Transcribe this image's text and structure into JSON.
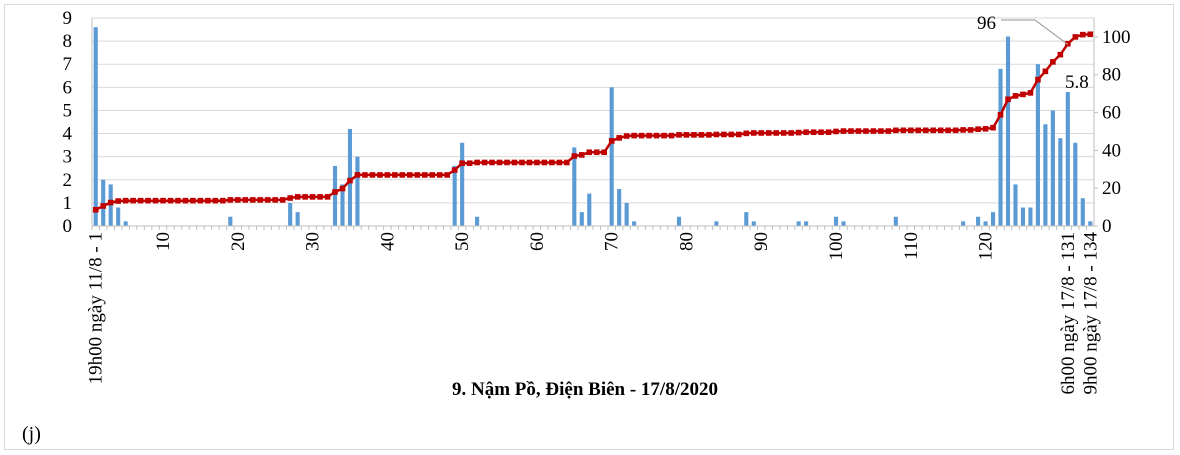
{
  "chart_data": {
    "type": "bar",
    "title": "9. Nậm Pồ, Điện Biên - 17/8/2020",
    "panel_label": "(j)",
    "x": {
      "range": [
        1,
        134
      ],
      "ticks": [
        10,
        20,
        30,
        40,
        50,
        60,
        70,
        80,
        90,
        100,
        110,
        120
      ],
      "first_label": "19h00 ngày 11/8 - 1",
      "end_labels": [
        "6h00 ngày 17/8 - 131",
        "9h00 ngày 17/8 - 134"
      ]
    },
    "y_left": {
      "range": [
        0,
        9
      ],
      "ticks": [
        0,
        1,
        2,
        3,
        4,
        5,
        6,
        7,
        8,
        9
      ],
      "grid": true
    },
    "y_right": {
      "range": [
        0,
        110
      ],
      "ticks": [
        0,
        20,
        40,
        60,
        80,
        100
      ]
    },
    "annotations": [
      {
        "text": "96",
        "x": 131,
        "value": 96,
        "axis": "right"
      },
      {
        "text": "5.8",
        "x": 131,
        "value": 5.8,
        "axis": "left"
      }
    ],
    "series": [
      {
        "kind": "bar",
        "axis": "left",
        "color": "#5b9bd5",
        "values": [
          {
            "x": 1,
            "y": 8.6
          },
          {
            "x": 2,
            "y": 2.0
          },
          {
            "x": 3,
            "y": 1.8
          },
          {
            "x": 4,
            "y": 0.8
          },
          {
            "x": 5,
            "y": 0.2
          },
          {
            "x": 19,
            "y": 0.4
          },
          {
            "x": 27,
            "y": 1.0
          },
          {
            "x": 28,
            "y": 0.6
          },
          {
            "x": 33,
            "y": 2.6
          },
          {
            "x": 34,
            "y": 1.8
          },
          {
            "x": 35,
            "y": 4.2
          },
          {
            "x": 36,
            "y": 3.0
          },
          {
            "x": 49,
            "y": 2.6
          },
          {
            "x": 50,
            "y": 3.6
          },
          {
            "x": 52,
            "y": 0.4
          },
          {
            "x": 65,
            "y": 3.4
          },
          {
            "x": 66,
            "y": 0.6
          },
          {
            "x": 67,
            "y": 1.4
          },
          {
            "x": 70,
            "y": 6.0
          },
          {
            "x": 71,
            "y": 1.6
          },
          {
            "x": 72,
            "y": 1.0
          },
          {
            "x": 73,
            "y": 0.2
          },
          {
            "x": 79,
            "y": 0.4
          },
          {
            "x": 84,
            "y": 0.2
          },
          {
            "x": 88,
            "y": 0.6
          },
          {
            "x": 89,
            "y": 0.2
          },
          {
            "x": 95,
            "y": 0.2
          },
          {
            "x": 96,
            "y": 0.2
          },
          {
            "x": 100,
            "y": 0.4
          },
          {
            "x": 101,
            "y": 0.2
          },
          {
            "x": 108,
            "y": 0.4
          },
          {
            "x": 117,
            "y": 0.2
          },
          {
            "x": 119,
            "y": 0.4
          },
          {
            "x": 120,
            "y": 0.2
          },
          {
            "x": 121,
            "y": 0.6
          },
          {
            "x": 122,
            "y": 6.8
          },
          {
            "x": 123,
            "y": 8.2
          },
          {
            "x": 124,
            "y": 1.8
          },
          {
            "x": 125,
            "y": 0.8
          },
          {
            "x": 126,
            "y": 0.8
          },
          {
            "x": 127,
            "y": 7.0
          },
          {
            "x": 128,
            "y": 4.4
          },
          {
            "x": 129,
            "y": 5.0
          },
          {
            "x": 130,
            "y": 3.8
          },
          {
            "x": 131,
            "y": 5.8
          },
          {
            "x": 132,
            "y": 3.6
          },
          {
            "x": 133,
            "y": 1.2
          },
          {
            "x": 134,
            "y": 0.2
          }
        ]
      },
      {
        "kind": "line",
        "axis": "right",
        "color": "#c00000",
        "breakpoints": [
          [
            1,
            8.6
          ],
          [
            2,
            10.6
          ],
          [
            3,
            12.4
          ],
          [
            4,
            13.2
          ],
          [
            5,
            13.4
          ],
          [
            19,
            13.8
          ],
          [
            27,
            14.8
          ],
          [
            28,
            15.4
          ],
          [
            33,
            18.0
          ],
          [
            34,
            19.8
          ],
          [
            35,
            24.0
          ],
          [
            36,
            27.0
          ],
          [
            49,
            29.6
          ],
          [
            50,
            33.2
          ],
          [
            52,
            33.6
          ],
          [
            65,
            37.0
          ],
          [
            66,
            37.6
          ],
          [
            67,
            39.0
          ],
          [
            70,
            45.0
          ],
          [
            71,
            46.6
          ],
          [
            72,
            47.6
          ],
          [
            73,
            47.8
          ],
          [
            79,
            48.2
          ],
          [
            84,
            48.4
          ],
          [
            88,
            49.0
          ],
          [
            89,
            49.2
          ],
          [
            95,
            49.4
          ],
          [
            96,
            49.6
          ],
          [
            100,
            50.0
          ],
          [
            101,
            50.2
          ],
          [
            108,
            50.6
          ],
          [
            117,
            50.8
          ],
          [
            119,
            51.2
          ],
          [
            120,
            51.4
          ],
          [
            121,
            52.0
          ],
          [
            122,
            58.8
          ],
          [
            123,
            67.0
          ],
          [
            124,
            68.8
          ],
          [
            125,
            69.6
          ],
          [
            126,
            70.4
          ],
          [
            127,
            77.4
          ],
          [
            128,
            81.8
          ],
          [
            129,
            86.8
          ],
          [
            130,
            90.6
          ],
          [
            131,
            96.4
          ],
          [
            132,
            100.0
          ],
          [
            133,
            101.2
          ],
          [
            134,
            101.4
          ]
        ]
      }
    ]
  }
}
